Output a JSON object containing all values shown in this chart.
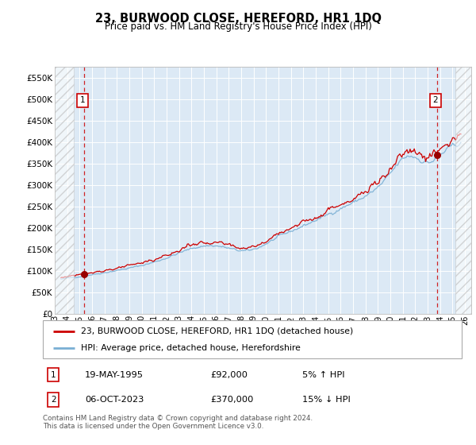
{
  "title": "23, BURWOOD CLOSE, HEREFORD, HR1 1DQ",
  "subtitle": "Price paid vs. HM Land Registry's House Price Index (HPI)",
  "legend_line1": "23, BURWOOD CLOSE, HEREFORD, HR1 1DQ (detached house)",
  "legend_line2": "HPI: Average price, detached house, Herefordshire",
  "sale1_date": "19-MAY-1995",
  "sale1_price": 92000,
  "sale1_label": "5% ↑ HPI",
  "sale2_date": "06-OCT-2023",
  "sale2_price": 370000,
  "sale2_label": "15% ↓ HPI",
  "ymin": 0,
  "ymax": 575000,
  "yticks": [
    0,
    50000,
    100000,
    150000,
    200000,
    250000,
    300000,
    350000,
    400000,
    450000,
    500000,
    550000
  ],
  "bg_color": "#dce9f5",
  "red_line_color": "#cc0000",
  "blue_line_color": "#7aafd4",
  "marker_color": "#990000",
  "dashed_color": "#cc0000",
  "footer": "Contains HM Land Registry data © Crown copyright and database right 2024.\nThis data is licensed under the Open Government Licence v3.0.",
  "sale1_year": 1995.38,
  "sale2_year": 2023.76,
  "xmin": 1993.0,
  "xmax": 2026.5,
  "hatch_end1": 1994.5,
  "hatch_start2": 2025.2
}
